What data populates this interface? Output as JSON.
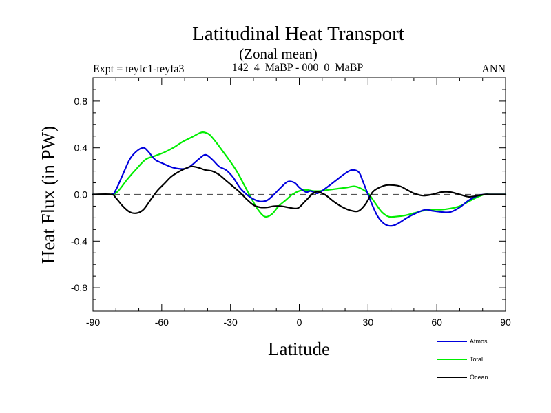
{
  "chart_data": {
    "type": "line",
    "title": "Latitudinal Heat Transport",
    "subtitle": "(Zonal mean)",
    "experiment_label": "Expt = teyIc1-teyfa3",
    "center_label": "142_4_MaBP - 000_0_MaBP",
    "season_label": "ANN",
    "xlabel": "Latitude",
    "ylabel": "Heat Flux (in PW)",
    "xlim": [
      -90,
      90
    ],
    "ylim": [
      -1.0,
      1.0
    ],
    "xticks": [
      -90,
      -60,
      -30,
      0,
      30,
      60,
      90
    ],
    "xtick_labels": [
      "-90",
      "-60",
      "-30",
      "0",
      "30",
      "60",
      "90"
    ],
    "yticks": [
      -0.8,
      -0.4,
      0.0,
      0.4,
      0.8
    ],
    "ytick_labels": [
      "-0.8",
      "-0.4",
      "0.0",
      "0.4",
      "0.8"
    ],
    "zero_line": true,
    "legend_position": "bottom-right",
    "series": [
      {
        "name": "Atmos",
        "color": "#0000dd",
        "x": [
          -90,
          -82,
          -80,
          -77,
          -74,
          -71,
          -68,
          -66,
          -63,
          -60,
          -55,
          -50,
          -47,
          -44,
          -41,
          -38,
          -35,
          -32,
          -29,
          -26,
          -23,
          -20,
          -17,
          -14,
          -11,
          -8,
          -5,
          -2,
          0,
          3,
          5,
          8,
          12,
          16,
          20,
          23,
          26,
          28,
          31,
          34,
          37,
          40,
          43,
          47,
          51,
          55,
          58,
          62,
          66,
          70,
          74,
          78,
          81,
          84,
          90
        ],
        "y": [
          0.0,
          0.0,
          0.04,
          0.17,
          0.3,
          0.37,
          0.4,
          0.37,
          0.3,
          0.27,
          0.23,
          0.22,
          0.25,
          0.3,
          0.34,
          0.3,
          0.24,
          0.21,
          0.15,
          0.06,
          0.0,
          -0.04,
          -0.06,
          -0.05,
          0.0,
          0.06,
          0.11,
          0.1,
          0.06,
          0.02,
          0.03,
          0.01,
          0.06,
          0.12,
          0.18,
          0.21,
          0.19,
          0.1,
          -0.05,
          -0.18,
          -0.25,
          -0.27,
          -0.25,
          -0.2,
          -0.16,
          -0.13,
          -0.14,
          -0.15,
          -0.15,
          -0.11,
          -0.05,
          -0.01,
          0.0,
          0.0,
          0.0
        ]
      },
      {
        "name": "Total",
        "color": "#00ee00",
        "x": [
          -90,
          -82,
          -79,
          -75,
          -71,
          -67,
          -63,
          -59,
          -55,
          -51,
          -47,
          -43,
          -41,
          -39,
          -36,
          -33,
          -30,
          -27,
          -24,
          -21,
          -18,
          -15,
          -12,
          -9,
          -6,
          -3,
          0,
          3,
          6,
          9,
          13,
          17,
          21,
          24,
          27,
          30,
          33,
          36,
          39,
          42,
          46,
          50,
          54,
          58,
          62,
          66,
          70,
          74,
          78,
          81,
          84,
          90
        ],
        "y": [
          0.0,
          0.0,
          0.03,
          0.13,
          0.22,
          0.3,
          0.33,
          0.36,
          0.4,
          0.45,
          0.49,
          0.53,
          0.53,
          0.51,
          0.44,
          0.36,
          0.28,
          0.19,
          0.08,
          -0.03,
          -0.13,
          -0.19,
          -0.17,
          -0.1,
          -0.05,
          0.0,
          0.03,
          0.04,
          0.03,
          0.03,
          0.04,
          0.05,
          0.06,
          0.07,
          0.05,
          0.01,
          -0.07,
          -0.15,
          -0.19,
          -0.19,
          -0.18,
          -0.16,
          -0.14,
          -0.13,
          -0.13,
          -0.12,
          -0.1,
          -0.06,
          -0.02,
          0.0,
          0.0,
          0.0
        ]
      },
      {
        "name": "Ocean",
        "color": "#000000",
        "x": [
          -90,
          -82,
          -80,
          -77,
          -74,
          -71,
          -68,
          -65,
          -62,
          -59,
          -56,
          -53,
          -50,
          -47,
          -44,
          -41,
          -38,
          -35,
          -32,
          -29,
          -26,
          -23,
          -20,
          -17,
          -14,
          -11,
          -8,
          -5,
          -2,
          0,
          3,
          7,
          11,
          15,
          19,
          23,
          26,
          29,
          32,
          35,
          38,
          41,
          44,
          47,
          50,
          54,
          58,
          62,
          66,
          70,
          74,
          78,
          81,
          84,
          90
        ],
        "y": [
          0.0,
          0.0,
          -0.03,
          -0.1,
          -0.15,
          -0.16,
          -0.13,
          -0.05,
          0.03,
          0.09,
          0.15,
          0.19,
          0.22,
          0.24,
          0.23,
          0.21,
          0.2,
          0.17,
          0.12,
          0.07,
          0.02,
          -0.04,
          -0.09,
          -0.11,
          -0.11,
          -0.1,
          -0.1,
          -0.11,
          -0.12,
          -0.11,
          -0.05,
          0.02,
          0.0,
          -0.06,
          -0.11,
          -0.14,
          -0.14,
          -0.08,
          0.02,
          0.06,
          0.08,
          0.08,
          0.07,
          0.04,
          0.01,
          -0.01,
          0.0,
          0.02,
          0.02,
          0.0,
          -0.02,
          -0.01,
          0.0,
          0.0,
          0.0
        ]
      }
    ]
  }
}
